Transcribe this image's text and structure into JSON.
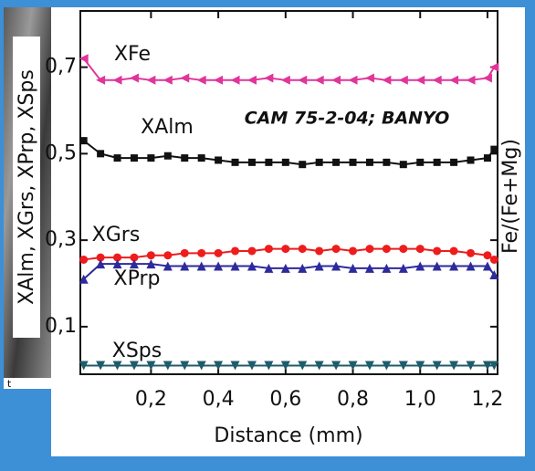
{
  "chart_data": {
    "type": "line",
    "x_label": "Distance (mm)",
    "y_label": "XAlm, XGrs, XPrp, XSps",
    "y2_label": "Fe/(Fe+Mg)",
    "annotation": "CAM 75-2-04; BANYO",
    "fragment": "t",
    "x": [
      0,
      0.05,
      0.1,
      0.15,
      0.2,
      0.25,
      0.3,
      0.35,
      0.4,
      0.45,
      0.5,
      0.55,
      0.6,
      0.65,
      0.7,
      0.75,
      0.8,
      0.85,
      0.9,
      0.95,
      1.0,
      1.05,
      1.1,
      1.15,
      1.2,
      1.22
    ],
    "series": [
      {
        "name": "XFe",
        "color": "#e0359a",
        "marker": "triangle-left",
        "values": [
          0.72,
          0.67,
          0.67,
          0.675,
          0.67,
          0.67,
          0.675,
          0.67,
          0.67,
          0.67,
          0.67,
          0.675,
          0.67,
          0.67,
          0.67,
          0.67,
          0.67,
          0.675,
          0.67,
          0.67,
          0.67,
          0.67,
          0.67,
          0.67,
          0.675,
          0.7
        ]
      },
      {
        "name": "XAlm",
        "color": "#111111",
        "marker": "square",
        "values": [
          0.53,
          0.5,
          0.49,
          0.49,
          0.49,
          0.495,
          0.49,
          0.49,
          0.485,
          0.48,
          0.48,
          0.48,
          0.48,
          0.475,
          0.48,
          0.48,
          0.48,
          0.48,
          0.48,
          0.475,
          0.48,
          0.48,
          0.48,
          0.485,
          0.49,
          0.51
        ]
      },
      {
        "name": "XGrs",
        "color": "#ee1c1c",
        "marker": "circle",
        "values": [
          0.255,
          0.26,
          0.26,
          0.26,
          0.265,
          0.265,
          0.27,
          0.27,
          0.27,
          0.275,
          0.275,
          0.28,
          0.28,
          0.28,
          0.275,
          0.28,
          0.275,
          0.28,
          0.28,
          0.28,
          0.28,
          0.275,
          0.275,
          0.27,
          0.265,
          0.255
        ]
      },
      {
        "name": "XPrp",
        "color": "#2e2a9c",
        "marker": "triangle-up",
        "values": [
          0.21,
          0.245,
          0.245,
          0.245,
          0.245,
          0.24,
          0.24,
          0.24,
          0.24,
          0.24,
          0.24,
          0.235,
          0.235,
          0.235,
          0.24,
          0.24,
          0.235,
          0.235,
          0.235,
          0.235,
          0.24,
          0.24,
          0.24,
          0.24,
          0.24,
          0.22
        ]
      },
      {
        "name": "XSps",
        "color": "#1f5c6b",
        "marker": "triangle-down",
        "values": [
          0.01,
          0.01,
          0.01,
          0.01,
          0.01,
          0.01,
          0.01,
          0.01,
          0.01,
          0.01,
          0.01,
          0.01,
          0.01,
          0.01,
          0.01,
          0.01,
          0.01,
          0.01,
          0.01,
          0.01,
          0.01,
          0.01,
          0.01,
          0.01,
          0.01,
          0.01
        ]
      }
    ],
    "xlim": [
      -0.01,
      1.23
    ],
    "ylim": [
      -0.01,
      0.83
    ],
    "xticks": [
      {
        "value": 0.2,
        "label": "0,2"
      },
      {
        "value": 0.4,
        "label": "0,4"
      },
      {
        "value": 0.6,
        "label": "0,6"
      },
      {
        "value": 0.8,
        "label": "0,8"
      },
      {
        "value": 1.0,
        "label": "1,0"
      },
      {
        "value": 1.2,
        "label": "1,2"
      }
    ],
    "yticks": [
      {
        "value": 0.1,
        "label": "0,1"
      },
      {
        "value": 0.3,
        "label": "0,3"
      },
      {
        "value": 0.5,
        "label": "0,5"
      },
      {
        "value": 0.7,
        "label": "0,7"
      }
    ]
  }
}
